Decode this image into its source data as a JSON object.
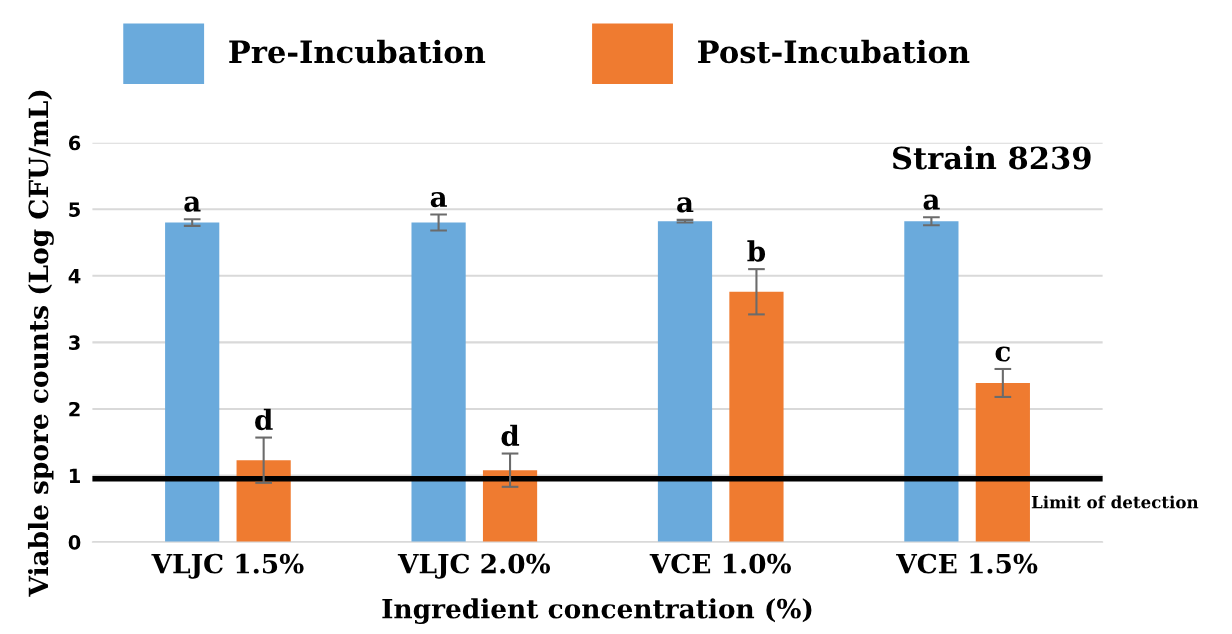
{
  "chart_data": {
    "type": "bar",
    "xlabel": "Ingredient concentration (%)",
    "ylabel": "Viable spore counts (Log CFU/mL)",
    "categories": [
      "VLJC 1.5%",
      "VLJC 2.0%",
      "VCE 1.0%",
      "VCE 1.5%"
    ],
    "series": [
      {
        "name": "Pre-Incubation",
        "color": "#6aaadc",
        "values": [
          4.8,
          4.8,
          4.82,
          4.82
        ],
        "errors": [
          0.05,
          0.12,
          0.02,
          0.06
        ],
        "value_labels": [
          "a",
          "a",
          "a",
          "a"
        ]
      },
      {
        "name": "Post-Incubation",
        "color": "#ef7b30",
        "values": [
          1.23,
          1.08,
          3.76,
          2.39
        ],
        "errors": [
          0.34,
          0.25,
          0.34,
          0.21
        ],
        "value_labels": [
          "d",
          "d",
          "b",
          "c"
        ]
      }
    ],
    "ylim": [
      0,
      6
    ],
    "yticks": [
      0,
      1,
      2,
      3,
      4,
      5,
      6
    ],
    "grid": "y",
    "legend": "top",
    "ref_lines": [
      {
        "axis": "y",
        "value": 0.95,
        "label": "Limit of detection",
        "color": "#000000"
      }
    ],
    "annotations": [
      "Strain 8239"
    ]
  }
}
